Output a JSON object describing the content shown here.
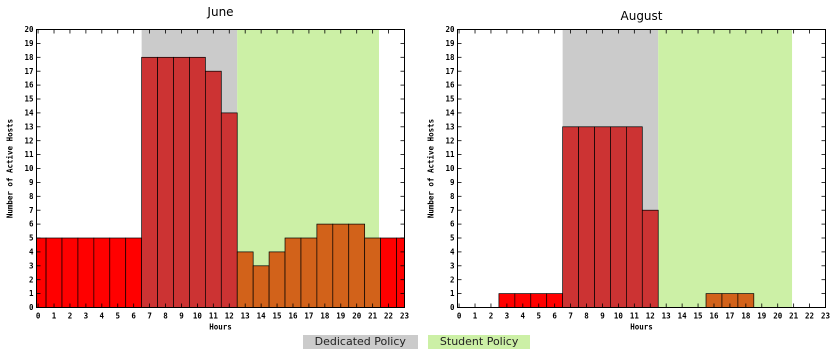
{
  "legend": {
    "dedicated_label": "Dedicated Policy",
    "student_label": "Student Policy",
    "dedicated_color": "#cbcbcb",
    "student_color": "#ccf0a6"
  },
  "chart_data": [
    {
      "type": "bar",
      "title": "June",
      "xlabel": "Hours",
      "ylabel": "Number of Active Hosts",
      "xlim": [
        -0.1,
        23
      ],
      "ylim": [
        0,
        20
      ],
      "x_ticks": [
        0,
        1,
        2,
        3,
        4,
        5,
        6,
        7,
        8,
        9,
        10,
        11,
        12,
        13,
        14,
        15,
        16,
        17,
        18,
        19,
        20,
        21,
        22,
        23
      ],
      "y_ticks": [
        0,
        1,
        2,
        3,
        4,
        5,
        6,
        7,
        8,
        9,
        10,
        11,
        12,
        13,
        14,
        15,
        16,
        17,
        18,
        19,
        20
      ],
      "regions": [
        {
          "policy": "Dedicated Policy",
          "x_start": 6.5,
          "x_end": 12.5,
          "color": "#cbcbcb"
        },
        {
          "policy": "Student Policy",
          "x_start": 12.5,
          "x_end": 21.4,
          "color": "#ccf0a6"
        }
      ],
      "categories": [
        0,
        1,
        2,
        3,
        4,
        5,
        6,
        7,
        8,
        9,
        10,
        11,
        12,
        13,
        14,
        15,
        16,
        17,
        18,
        19,
        20,
        21,
        22,
        23
      ],
      "values": [
        5,
        5,
        5,
        5,
        5,
        5,
        5,
        18,
        18,
        18,
        18,
        17,
        14,
        4,
        3,
        4,
        5,
        5,
        6,
        6,
        6,
        5,
        5,
        5
      ],
      "bar_colors": [
        "#ff0000",
        "#ff0000",
        "#ff0000",
        "#ff0000",
        "#ff0000",
        "#ff0000",
        "#ff0000",
        "#cc3333",
        "#cc3333",
        "#cc3333",
        "#cc3333",
        "#cc3333",
        "#cc3333",
        "#d2621a",
        "#d2621a",
        "#d2621a",
        "#d2621a",
        "#d2621a",
        "#d2621a",
        "#d2621a",
        "#d2621a",
        "#d2621a",
        "#ff0000",
        "#ff0000"
      ]
    },
    {
      "type": "bar",
      "title": "August",
      "xlabel": "Hours",
      "ylabel": "Number of Active Hosts",
      "xlim": [
        -0.1,
        23
      ],
      "ylim": [
        0,
        20
      ],
      "x_ticks": [
        0,
        1,
        2,
        3,
        4,
        5,
        6,
        7,
        8,
        9,
        10,
        11,
        12,
        13,
        14,
        15,
        16,
        17,
        18,
        19,
        20,
        21,
        22,
        23
      ],
      "y_ticks": [
        0,
        1,
        2,
        3,
        4,
        5,
        6,
        7,
        8,
        9,
        10,
        11,
        12,
        13,
        14,
        15,
        16,
        17,
        18,
        19,
        20
      ],
      "regions": [
        {
          "policy": "Dedicated Policy",
          "x_start": 6.5,
          "x_end": 12.5,
          "color": "#cbcbcb"
        },
        {
          "policy": "Student Policy",
          "x_start": 12.5,
          "x_end": 20.9,
          "color": "#ccf0a6"
        }
      ],
      "categories": [
        0,
        1,
        2,
        3,
        4,
        5,
        6,
        7,
        8,
        9,
        10,
        11,
        12,
        13,
        14,
        15,
        16,
        17,
        18,
        19,
        20,
        21,
        22,
        23
      ],
      "values": [
        0,
        0,
        0,
        1,
        1,
        1,
        1,
        13,
        13,
        13,
        13,
        13,
        7,
        0,
        0,
        0,
        1,
        1,
        1,
        0,
        0,
        0,
        0,
        0
      ],
      "bar_colors": [
        "#ff0000",
        "#ff0000",
        "#ff0000",
        "#ff0000",
        "#ff0000",
        "#ff0000",
        "#ff0000",
        "#cc3333",
        "#cc3333",
        "#cc3333",
        "#cc3333",
        "#cc3333",
        "#cc3333",
        "#d2621a",
        "#d2621a",
        "#d2621a",
        "#d2621a",
        "#d2621a",
        "#d2621a",
        "#d2621a",
        "#d2621a",
        "#d2621a",
        "#ff0000",
        "#ff0000"
      ]
    }
  ]
}
